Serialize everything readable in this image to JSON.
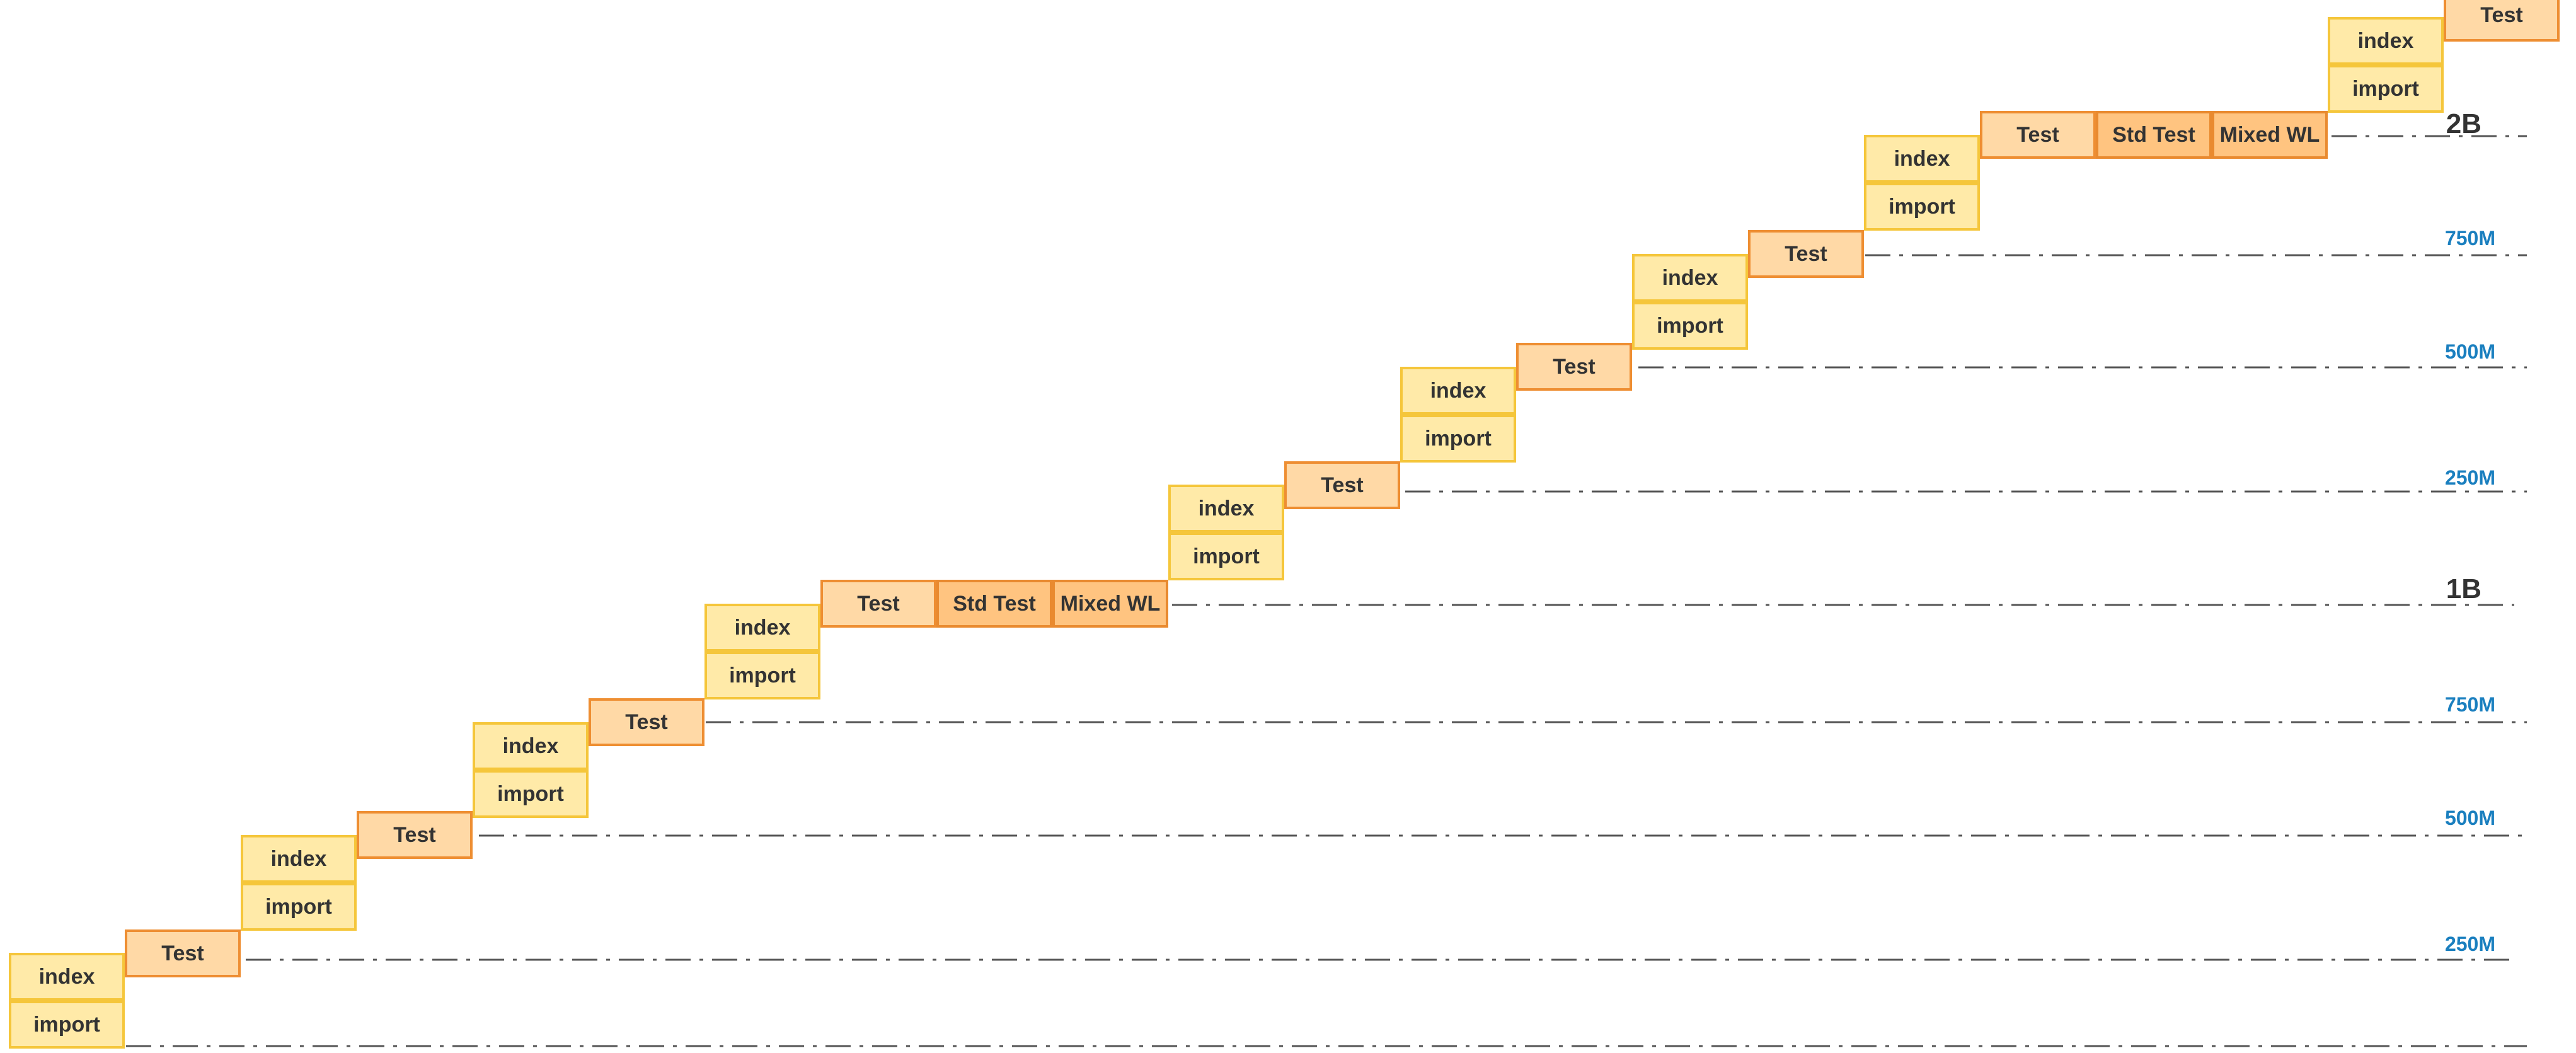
{
  "colors": {
    "index_fill": "#ffeaa8",
    "index_border": "#f5c63b",
    "test_fill": "#ffd9a6",
    "test_border": "#ee8e32",
    "workload_fill": "#ffc480",
    "workload_border": "#e98a2f",
    "minor_label": "#1a7fbf",
    "major_label": "#333333",
    "line": "#555555"
  },
  "labels": {
    "index": "index",
    "import": "import",
    "test": "Test",
    "std_test": "Std Test",
    "mixed_wl": "Mixed WL"
  },
  "milestones": [
    {
      "text": ""
    },
    {
      "text": "250M"
    },
    {
      "text": "500M"
    },
    {
      "text": "750M"
    },
    {
      "text": "1B"
    },
    {
      "text": "250M"
    },
    {
      "text": "500M"
    },
    {
      "text": "750M"
    },
    {
      "text": "2B"
    }
  ]
}
